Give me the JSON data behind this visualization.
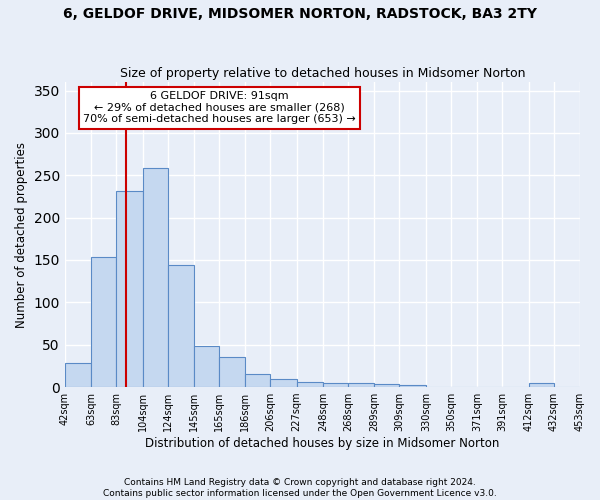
{
  "title1": "6, GELDOF DRIVE, MIDSOMER NORTON, RADSTOCK, BA3 2TY",
  "title2": "Size of property relative to detached houses in Midsomer Norton",
  "xlabel": "Distribution of detached houses by size in Midsomer Norton",
  "ylabel": "Number of detached properties",
  "footer1": "Contains HM Land Registry data © Crown copyright and database right 2024.",
  "footer2": "Contains public sector information licensed under the Open Government Licence v3.0.",
  "annotation_line1": "6 GELDOF DRIVE: 91sqm",
  "annotation_line2": "← 29% of detached houses are smaller (268)",
  "annotation_line3": "70% of semi-detached houses are larger (653) →",
  "bar_values": [
    28,
    154,
    232,
    259,
    144,
    49,
    36,
    16,
    9,
    6,
    5,
    5,
    4,
    3,
    0,
    0,
    0,
    0,
    5,
    0
  ],
  "bin_labels": [
    "42sqm",
    "63sqm",
    "83sqm",
    "104sqm",
    "124sqm",
    "145sqm",
    "165sqm",
    "186sqm",
    "206sqm",
    "227sqm",
    "248sqm",
    "268sqm",
    "289sqm",
    "309sqm",
    "330sqm",
    "350sqm",
    "371sqm",
    "391sqm",
    "412sqm",
    "432sqm",
    "453sqm"
  ],
  "bin_edges": [
    42,
    63,
    83,
    104,
    124,
    145,
    165,
    186,
    206,
    227,
    248,
    268,
    289,
    309,
    330,
    350,
    371,
    391,
    412,
    432,
    453
  ],
  "property_size": 91,
  "bar_color": "#c5d8f0",
  "bar_edge_color": "#5a8ac6",
  "vline_color": "#cc0000",
  "ylim_max": 360,
  "background_color": "#e8eef8",
  "annotation_box_color": "#ffffff",
  "annotation_box_edge": "#cc0000",
  "grid_color": "#ffffff",
  "title1_fontsize": 10,
  "title2_fontsize": 9,
  "ylabel_fontsize": 8.5,
  "xlabel_fontsize": 8.5,
  "tick_fontsize": 7,
  "footer_fontsize": 6.5,
  "annotation_fontsize": 8
}
